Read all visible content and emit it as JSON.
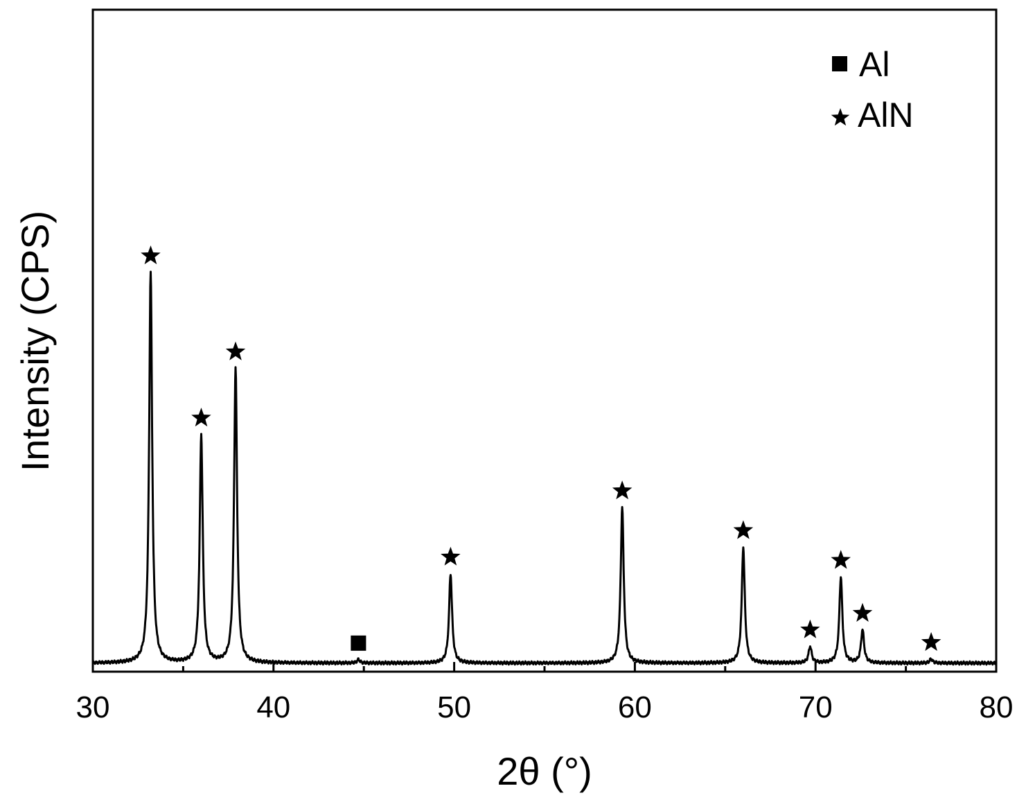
{
  "chart_data": {
    "type": "line",
    "title": "",
    "xlabel": "2θ (°)",
    "ylabel": "Intensity (CPS)",
    "xlim": [
      30,
      80
    ],
    "ylim": [
      0,
      1.0
    ],
    "x_ticks": [
      30,
      40,
      50,
      60,
      70,
      80
    ],
    "x_minor_ticks": [
      35,
      45,
      55,
      65,
      75
    ],
    "y_ticks_shown": false,
    "grid": false,
    "legend": {
      "placement": "top-right",
      "entries": [
        {
          "marker": "square",
          "label": "Al"
        },
        {
          "marker": "star",
          "label": "AlN"
        }
      ]
    },
    "baseline": 0.013,
    "series": [
      {
        "color": "#000000",
        "peaks": [
          {
            "x": 33.2,
            "y": 0.59,
            "phase": "AlN"
          },
          {
            "x": 36.0,
            "y": 0.345,
            "phase": "AlN"
          },
          {
            "x": 37.9,
            "y": 0.445,
            "phase": "AlN"
          },
          {
            "x": 44.7,
            "y": 0.005,
            "phase": "Al"
          },
          {
            "x": 49.8,
            "y": 0.135,
            "phase": "AlN"
          },
          {
            "x": 59.3,
            "y": 0.235,
            "phase": "AlN"
          },
          {
            "x": 66.0,
            "y": 0.175,
            "phase": "AlN"
          },
          {
            "x": 69.7,
            "y": 0.025,
            "phase": "AlN"
          },
          {
            "x": 71.4,
            "y": 0.13,
            "phase": "AlN"
          },
          {
            "x": 72.6,
            "y": 0.05,
            "phase": "AlN"
          },
          {
            "x": 76.4,
            "y": 0.006,
            "phase": "AlN"
          }
        ]
      }
    ]
  }
}
